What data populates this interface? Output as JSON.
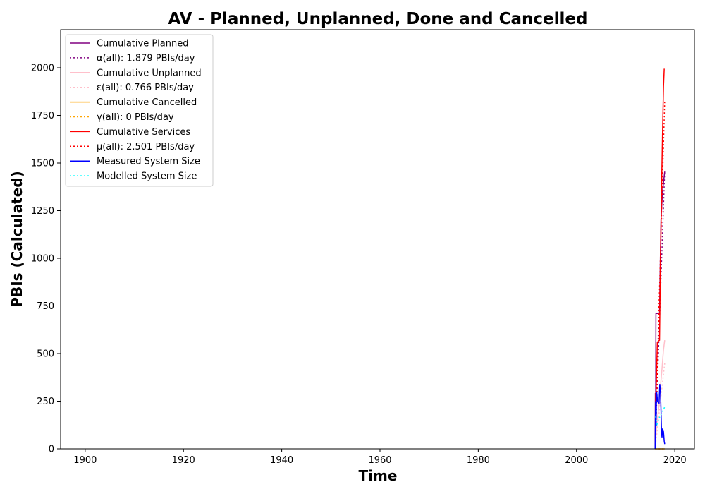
{
  "chart_data": {
    "type": "line",
    "title": "AV - Planned, Unplanned, Done  and Cancelled",
    "xlabel": "Time",
    "ylabel": "PBIs (Calculated)",
    "xlim": [
      1895,
      2024
    ],
    "ylim": [
      0,
      2200
    ],
    "x_ticks": [
      1900,
      1920,
      1940,
      1960,
      1980,
      2000,
      2020
    ],
    "y_ticks": [
      0,
      250,
      500,
      750,
      1000,
      1250,
      1500,
      1750,
      2000
    ],
    "grid": false,
    "legend_position": "upper left",
    "series": [
      {
        "name": "Cumulative Planned",
        "color": "#800080",
        "style": "solid",
        "points": [
          [
            2016.0,
            0
          ],
          [
            2016.05,
            290
          ],
          [
            2016.12,
            290
          ],
          [
            2016.17,
            710
          ],
          [
            2016.9,
            710
          ],
          [
            2017.0,
            900
          ],
          [
            2017.2,
            1200
          ],
          [
            2017.5,
            1350
          ],
          [
            2017.8,
            1420
          ],
          [
            2017.95,
            1455
          ]
        ]
      },
      {
        "name": "α(all): 1.879 PBIs/day",
        "color": "#800080",
        "style": "dotted",
        "points": [
          [
            2016.0,
            0
          ],
          [
            2017.95,
            1460
          ]
        ]
      },
      {
        "name": "Cumulative Unplanned",
        "color": "#ffc0cb",
        "style": "solid",
        "points": [
          [
            2016.0,
            0
          ],
          [
            2016.3,
            120
          ],
          [
            2016.8,
            230
          ],
          [
            2017.1,
            330
          ],
          [
            2017.4,
            420
          ],
          [
            2017.7,
            520
          ],
          [
            2017.95,
            570
          ]
        ]
      },
      {
        "name": "ε(all): 0.766 PBIs/day",
        "color": "#ffc0cb",
        "style": "dotted",
        "points": [
          [
            2016.0,
            0
          ],
          [
            2017.95,
            450
          ]
        ]
      },
      {
        "name": "Cumulative Cancelled",
        "color": "#ffa500",
        "style": "solid",
        "points": [
          [
            2016.0,
            0
          ],
          [
            2017.95,
            0
          ]
        ]
      },
      {
        "name": "γ(all): 0 PBIs/day",
        "color": "#ffa500",
        "style": "dotted",
        "points": [
          [
            2016.0,
            0
          ],
          [
            2017.95,
            0
          ]
        ]
      },
      {
        "name": "Cumulative Services",
        "color": "#ff0000",
        "style": "solid",
        "points": [
          [
            2016.0,
            0
          ],
          [
            2016.2,
            300
          ],
          [
            2016.45,
            560
          ],
          [
            2016.9,
            570
          ],
          [
            2017.05,
            900
          ],
          [
            2017.3,
            1350
          ],
          [
            2017.5,
            1650
          ],
          [
            2017.7,
            1900
          ],
          [
            2017.85,
            1995
          ]
        ]
      },
      {
        "name": "μ(all): 2.501 PBIs/day",
        "color": "#ff0000",
        "style": "dotted",
        "points": [
          [
            2016.0,
            0
          ],
          [
            2017.95,
            1830
          ]
        ]
      },
      {
        "name": "Measured System Size",
        "color": "#0000ff",
        "style": "solid",
        "points": [
          [
            2016.0,
            0
          ],
          [
            2016.1,
            250
          ],
          [
            2016.2,
            120
          ],
          [
            2016.3,
            300
          ],
          [
            2016.5,
            250
          ],
          [
            2016.8,
            240
          ],
          [
            2016.95,
            340
          ],
          [
            2017.1,
            300
          ],
          [
            2017.2,
            200
          ],
          [
            2017.3,
            90
          ],
          [
            2017.4,
            60
          ],
          [
            2017.5,
            100
          ],
          [
            2017.7,
            90
          ],
          [
            2017.85,
            40
          ],
          [
            2017.95,
            25
          ]
        ]
      },
      {
        "name": "Modelled System Size",
        "color": "#00ffff",
        "style": "dotted",
        "points": [
          [
            2016.1,
            170
          ],
          [
            2016.4,
            130
          ],
          [
            2016.8,
            160
          ],
          [
            2017.2,
            180
          ],
          [
            2017.6,
            200
          ],
          [
            2017.95,
            220
          ]
        ]
      }
    ]
  }
}
